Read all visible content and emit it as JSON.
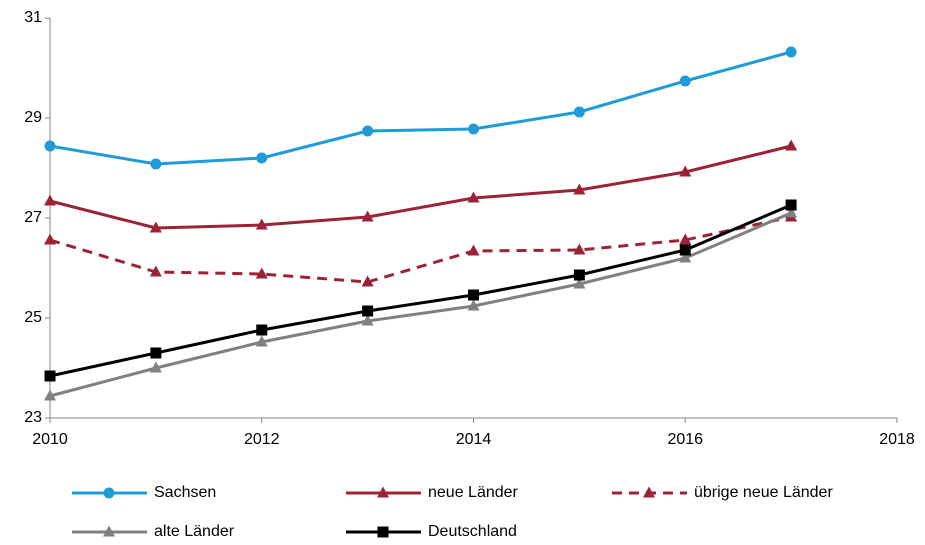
{
  "chart_data": {
    "type": "line",
    "x": [
      2010,
      2011,
      2012,
      2013,
      2014,
      2015,
      2016,
      2017
    ],
    "xlim": [
      2010,
      2018
    ],
    "xticks": [
      2010,
      2012,
      2014,
      2016,
      2018
    ],
    "ylim": [
      23,
      31
    ],
    "yticks": [
      23,
      25,
      27,
      29,
      31
    ],
    "grid": false,
    "legend": "bottom",
    "series": [
      {
        "name": "Sachsen",
        "color": "#1f9bd7",
        "marker": "circle",
        "dash": false,
        "values": [
          28.44,
          28.08,
          28.2,
          28.74,
          28.78,
          29.12,
          29.74,
          30.32
        ]
      },
      {
        "name": "neue Länder",
        "color": "#9b2335",
        "marker": "triangle",
        "dash": false,
        "values": [
          27.34,
          26.8,
          26.86,
          27.02,
          27.4,
          27.56,
          27.92,
          28.44
        ]
      },
      {
        "name": "übrige neue Länder",
        "color": "#9b2335",
        "marker": "triangle",
        "dash": true,
        "values": [
          26.56,
          25.92,
          25.88,
          25.72,
          26.34,
          26.36,
          26.56,
          27.02
        ]
      },
      {
        "name": "alte Länder",
        "color": "#808080",
        "marker": "triangle",
        "dash": false,
        "values": [
          23.44,
          24.0,
          24.52,
          24.94,
          25.24,
          25.68,
          26.2,
          27.1
        ]
      },
      {
        "name": "Deutschland",
        "color": "#000000",
        "marker": "square",
        "dash": false,
        "values": [
          23.84,
          24.3,
          24.76,
          25.14,
          25.46,
          25.86,
          26.36,
          27.26
        ]
      }
    ]
  }
}
